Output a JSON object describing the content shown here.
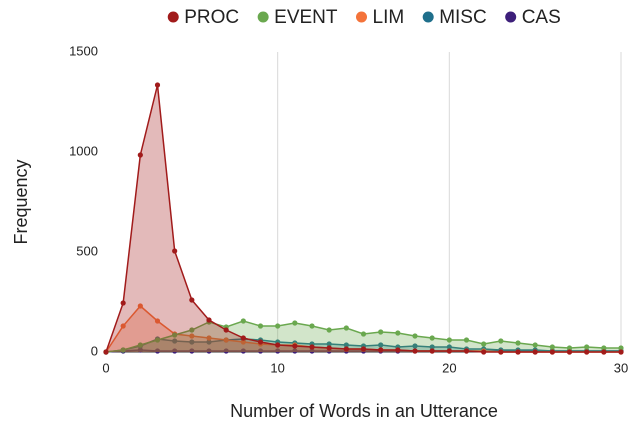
{
  "chart_data": {
    "type": "area",
    "x_label": "Number of Words in an Utterance",
    "y_label": "Frequency",
    "x": [
      0,
      1,
      2,
      3,
      4,
      5,
      6,
      7,
      8,
      9,
      10,
      11,
      12,
      13,
      14,
      15,
      16,
      17,
      18,
      19,
      20,
      21,
      22,
      23,
      24,
      25,
      26,
      27,
      28,
      29,
      30
    ],
    "series": [
      {
        "name": "PROC",
        "color": "#a11b1b",
        "values": [
          0,
          245,
          985,
          1335,
          505,
          260,
          160,
          110,
          70,
          50,
          35,
          30,
          25,
          20,
          15,
          15,
          10,
          10,
          5,
          5,
          5,
          5,
          0,
          0,
          0,
          0,
          0,
          0,
          0,
          0,
          0
        ]
      },
      {
        "name": "EVENT",
        "color": "#6aa84f",
        "values": [
          0,
          10,
          35,
          60,
          85,
          110,
          150,
          125,
          155,
          130,
          130,
          145,
          130,
          110,
          120,
          90,
          100,
          95,
          80,
          70,
          60,
          60,
          40,
          55,
          45,
          35,
          25,
          20,
          25,
          20,
          20
        ]
      },
      {
        "name": "LIM",
        "color": "#f4733a",
        "values": [
          0,
          130,
          230,
          155,
          90,
          80,
          70,
          60,
          50,
          40,
          35,
          35,
          25,
          20,
          15,
          15,
          10,
          10,
          5,
          5,
          5,
          5,
          5,
          0,
          0,
          0,
          0,
          0,
          0,
          0,
          0
        ]
      },
      {
        "name": "MISC",
        "color": "#1f6f8b",
        "values": [
          0,
          10,
          30,
          65,
          55,
          50,
          50,
          60,
          65,
          60,
          50,
          45,
          40,
          40,
          35,
          30,
          35,
          25,
          30,
          25,
          25,
          15,
          15,
          10,
          10,
          10,
          5,
          5,
          5,
          5,
          5
        ]
      },
      {
        "name": "CAS",
        "color": "#3d1f7a",
        "values": [
          0,
          5,
          10,
          5,
          5,
          5,
          5,
          5,
          5,
          5,
          5,
          5,
          5,
          5,
          5,
          5,
          5,
          5,
          5,
          5,
          5,
          5,
          5,
          5,
          5,
          5,
          5,
          5,
          5,
          5,
          5
        ]
      }
    ],
    "xlim": [
      0,
      30
    ],
    "xticks": [
      0,
      10,
      20,
      30
    ],
    "ylim": [
      0,
      1500
    ],
    "yticks": [
      0,
      500,
      1000,
      1500
    ],
    "grid": "x",
    "legend": "top"
  }
}
